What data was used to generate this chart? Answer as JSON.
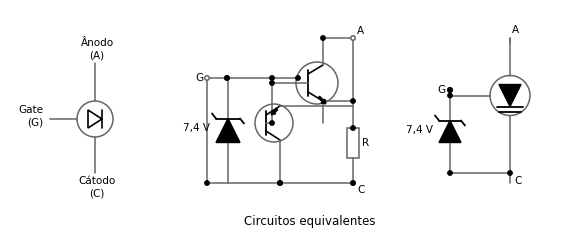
{
  "title": "Circuitos equivalentes",
  "title_fontsize": 8.5,
  "line_color": "#666666",
  "text_color": "#000000",
  "bg_color": "#ffffff",
  "lw": 1.1,
  "labels": {
    "anodo": "Ânodo\n(A)",
    "gate": "Gate\n(G)",
    "catodo": "Cátodo\n(C)",
    "G": "G",
    "A": "A",
    "C": "C",
    "V": "7,4 V",
    "R": "R"
  }
}
